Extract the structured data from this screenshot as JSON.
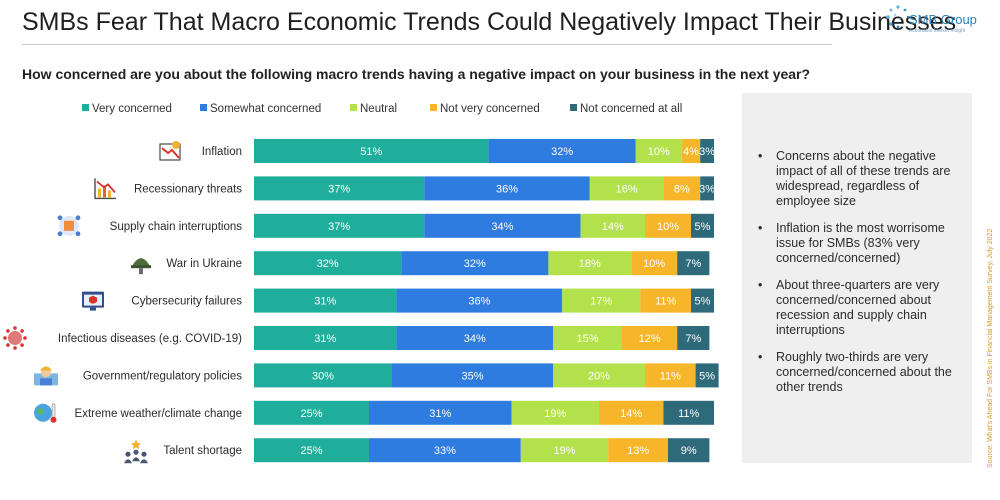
{
  "title": "SMBs Fear That Macro Economic Trends Could Negatively Impact Their Businesses",
  "subtitle": "How concerned are you about the following macro trends having a negative impact on your business in the next year?",
  "logo": {
    "name": "SMB Group",
    "tagline": "Actionable Market Insight"
  },
  "source_note": "Source: What's Ahead For SMBs in Financial Management Survey, July 2022",
  "colors": {
    "very": "#1fae9b",
    "somewhat": "#2f7ce0",
    "neutral": "#b2e14c",
    "not_very": "#f7b62a",
    "not_at_all": "#2f6a7a",
    "panel": "#efefef"
  },
  "bullets": [
    "Concerns about the negative impact of all of these trends are widespread, regardless of employee size",
    "Inflation is the most worrisome issue for SMBs (83% very concerned/concerned)",
    "About three-quarters are very concerned/concerned about recession and supply chain interruptions",
    "Roughly two-thirds are very concerned/concerned about the other trends"
  ],
  "bullet_symbol": "•",
  "chart_data": {
    "type": "bar",
    "orientation": "horizontal",
    "stacked": true,
    "legend_position": "top",
    "grid": false,
    "categories": [
      "Inflation",
      "Recessionary threats",
      "Supply chain interruptions",
      "War in Ukraine",
      "Cybersecurity failures",
      "Infectious diseases (e.g. COVID-19)",
      "Government/regulatory policies",
      "Extreme weather/climate change",
      "Talent shortage"
    ],
    "category_icons": [
      "inflation-chart-icon",
      "recession-chart-icon",
      "supply-chain-icon",
      "army-helmet-icon",
      "security-screen-icon",
      "virus-icon",
      "government-worker-icon",
      "globe-thermometer-icon",
      "team-star-icon"
    ],
    "series": [
      {
        "name": "Very concerned",
        "color_key": "very",
        "values": [
          51,
          37,
          37,
          32,
          31,
          31,
          30,
          25,
          25
        ]
      },
      {
        "name": "Somewhat concerned",
        "color_key": "somewhat",
        "values": [
          32,
          36,
          34,
          32,
          36,
          34,
          35,
          31,
          33
        ]
      },
      {
        "name": "Neutral",
        "color_key": "neutral",
        "values": [
          10,
          16,
          14,
          18,
          17,
          15,
          20,
          19,
          19
        ]
      },
      {
        "name": "Not very concerned",
        "color_key": "not_very",
        "values": [
          4,
          8,
          10,
          10,
          11,
          12,
          11,
          14,
          13
        ]
      },
      {
        "name": "Not concerned at all",
        "color_key": "not_at_all",
        "values": [
          3,
          3,
          5,
          7,
          5,
          7,
          5,
          11,
          9
        ]
      }
    ],
    "value_suffix": "%",
    "xlim": [
      0,
      100
    ]
  }
}
